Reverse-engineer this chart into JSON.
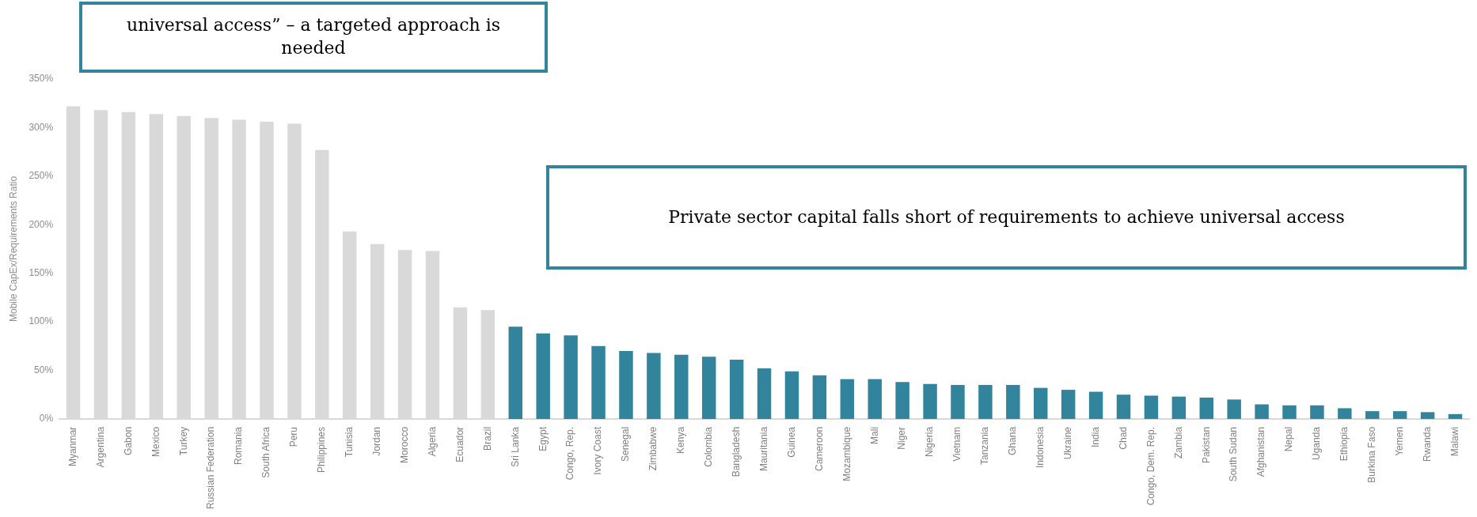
{
  "chart_data": {
    "type": "bar",
    "ylabel": "Mobile CapEx/Requirements Ratio",
    "categories": [
      "Myanmar",
      "Argentina",
      "Gabon",
      "Mexico",
      "Turkey",
      "Russian Federation",
      "Romania",
      "South Africa",
      "Peru",
      "Philippines",
      "Tunisia",
      "Jordan",
      "Morocco",
      "Algeria",
      "Ecuador",
      "Brazil",
      "Sri Lanka",
      "Egypt",
      "Congo, Rep.",
      "Ivory Coast",
      "Senegal",
      "Zimbabwe",
      "Kenya",
      "Colombia",
      "Bangladesh",
      "Mauritania",
      "Guinea",
      "Cameroon",
      "Mozambique",
      "Mali",
      "Niger",
      "Nigeria",
      "Vietnam",
      "Tanzania",
      "Ghana",
      "Indonesia",
      "Ukraine",
      "India",
      "Chad",
      "Congo, Dem. Rep.",
      "Zambia",
      "Pakistan",
      "South Sudan",
      "Afghanistan",
      "Nepal",
      "Uganda",
      "Ethiopia",
      "Burkina Faso",
      "Yemen",
      "Rwanda",
      "Malawi"
    ],
    "values": [
      322,
      318,
      316,
      314,
      312,
      310,
      308,
      306,
      304,
      277,
      193,
      180,
      174,
      173,
      115,
      112,
      95,
      88,
      86,
      75,
      70,
      68,
      66,
      64,
      61,
      52,
      49,
      45,
      41,
      41,
      38,
      36,
      35,
      35,
      35,
      32,
      30,
      28,
      25,
      24,
      23,
      22,
      20,
      15,
      14,
      14,
      11,
      8,
      8,
      7,
      5
    ],
    "colors": [
      "#d9d9d9",
      "#d9d9d9",
      "#d9d9d9",
      "#d9d9d9",
      "#d9d9d9",
      "#d9d9d9",
      "#d9d9d9",
      "#d9d9d9",
      "#d9d9d9",
      "#d9d9d9",
      "#d9d9d9",
      "#d9d9d9",
      "#d9d9d9",
      "#d9d9d9",
      "#d9d9d9",
      "#d9d9d9",
      "#31849b",
      "#31849b",
      "#31849b",
      "#31849b",
      "#31849b",
      "#31849b",
      "#31849b",
      "#31849b",
      "#31849b",
      "#31849b",
      "#31849b",
      "#31849b",
      "#31849b",
      "#31849b",
      "#31849b",
      "#31849b",
      "#31849b",
      "#31849b",
      "#31849b",
      "#31849b",
      "#31849b",
      "#31849b",
      "#31849b",
      "#31849b",
      "#31849b",
      "#31849b",
      "#31849b",
      "#31849b",
      "#31849b",
      "#31849b",
      "#31849b",
      "#31849b",
      "#31849b",
      "#31849b",
      "#31849b"
    ],
    "ylim": [
      0,
      350
    ],
    "yticks": [
      {
        "value": 0,
        "label": "0%"
      },
      {
        "value": 50,
        "label": "50%"
      },
      {
        "value": 100,
        "label": "100%"
      },
      {
        "value": 150,
        "label": "150%"
      },
      {
        "value": 200,
        "label": "200%"
      },
      {
        "value": 250,
        "label": "250%"
      },
      {
        "value": 300,
        "label": "300%"
      },
      {
        "value": 350,
        "label": "350%"
      }
    ],
    "grid": false,
    "legend": false,
    "annotations": [
      "universal access” – a targeted approach is needed",
      "Private sector capital falls short of requirements to achieve universal access"
    ]
  }
}
